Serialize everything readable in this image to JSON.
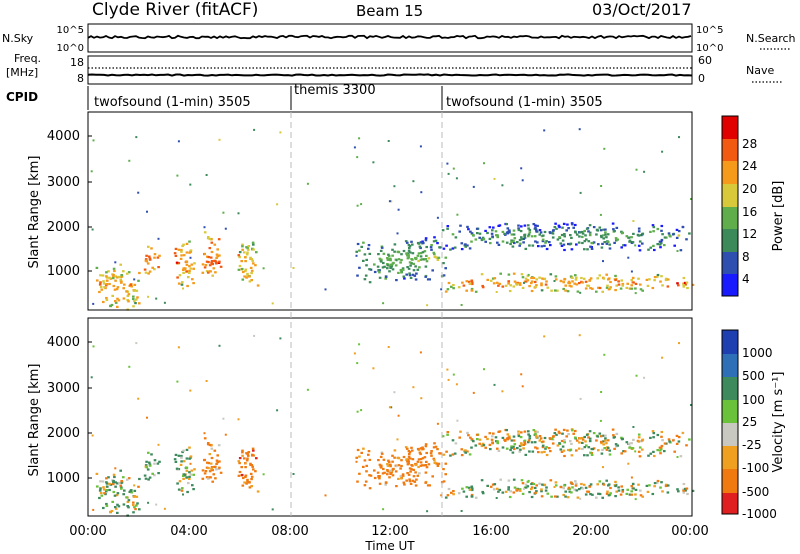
{
  "header": {
    "station": "Clyde River (fitACF)",
    "beam": "Beam 15",
    "date": "03/Oct/2017"
  },
  "top_panels": {
    "noise": {
      "label": "N.Sky",
      "left_top": "10^5",
      "left_bottom": "10^0",
      "right_top": "10^5",
      "right_bottom": "10^0",
      "right_label": "N.Search"
    },
    "freq": {
      "label": "Freq.",
      "unit": "[MHz]",
      "left_top": "18",
      "left_bottom": "8",
      "right_top": "60",
      "right_bottom": "0",
      "right_label": "Nave"
    },
    "cpid_label": "CPID",
    "modes": [
      {
        "start_hour": 0,
        "label": "twofsound (1-min) 3505"
      },
      {
        "start_hour": 8,
        "label": "themis 3300"
      },
      {
        "start_hour": 14,
        "label": "twofsound (1-min) 3505"
      }
    ]
  },
  "x_axis": {
    "label": "Time UT",
    "range_hours": [
      0,
      24
    ],
    "ticks": [
      "00:00",
      "04:00",
      "08:00",
      "12:00",
      "16:00",
      "20:00",
      "00:00"
    ]
  },
  "panels": {
    "power": {
      "y_label": "Slant Range [km]",
      "y_ticks": [
        "1000",
        "2000",
        "3000",
        "4000"
      ],
      "colorbar_label": "Power [dB]",
      "colorbar_ticks": [
        "4",
        "8",
        "12",
        "16",
        "20",
        "24",
        "28"
      ]
    },
    "velocity": {
      "y_label": "Slant Range [km]",
      "y_ticks": [
        "1000",
        "2000",
        "3000",
        "4000"
      ],
      "colorbar_label": "Velocity [m s⁻¹]",
      "colorbar_ticks": [
        "1000",
        "500",
        "100",
        "25",
        "-25",
        "-100",
        "-500",
        "-1000"
      ]
    }
  },
  "colors": {
    "power_scale": [
      "#1a1aff",
      "#2f4fb0",
      "#3c8a5a",
      "#5fae4b",
      "#d8c93a",
      "#f59a1a",
      "#f25a12",
      "#e00000"
    ],
    "velocity_scale": [
      "#1e3fb0",
      "#2f6fb8",
      "#3d8a5d",
      "#6ac23a",
      "#c8c8c0",
      "#f0a020",
      "#f07a10",
      "#e02020"
    ]
  },
  "chart_data": [
    {
      "type": "heatmap",
      "title": "Power",
      "x_unit": "hours UT",
      "y_unit": "slant range km",
      "xlim": [
        0,
        24
      ],
      "ylim": [
        180,
        4500
      ],
      "clim": [
        0,
        30
      ],
      "colorbar": "Power [dB]",
      "regions": [
        {
          "x": [
            0.3,
            2.0
          ],
          "y": [
            200,
            1200
          ],
          "value": 22
        },
        {
          "x": [
            2.2,
            2.8
          ],
          "y": [
            900,
            1700
          ],
          "value": 26
        },
        {
          "x": [
            3.4,
            4.2
          ],
          "y": [
            700,
            1800
          ],
          "value": 24
        },
        {
          "x": [
            4.5,
            5.3
          ],
          "y": [
            600,
            1900
          ],
          "value": 26
        },
        {
          "x": [
            5.9,
            6.8
          ],
          "y": [
            700,
            1700
          ],
          "value": 22
        },
        {
          "x": [
            10.6,
            14.2
          ],
          "y": [
            800,
            1800
          ],
          "value": 14
        },
        {
          "x": [
            14.0,
            24.0
          ],
          "y": [
            600,
            1000
          ],
          "value": 24
        },
        {
          "x": [
            14.0,
            24.0
          ],
          "y": [
            1500,
            2100
          ],
          "value": 12
        }
      ]
    },
    {
      "type": "heatmap",
      "title": "Velocity",
      "x_unit": "hours UT",
      "y_unit": "slant range km",
      "xlim": [
        0,
        24
      ],
      "ylim": [
        180,
        4500
      ],
      "clim": [
        -1000,
        1000
      ],
      "colorbar": "Velocity [m s-1]",
      "regions": [
        {
          "x": [
            0.3,
            2.0
          ],
          "y": [
            200,
            1200
          ],
          "value": 60
        },
        {
          "x": [
            2.2,
            2.8
          ],
          "y": [
            900,
            1700
          ],
          "value": 150
        },
        {
          "x": [
            3.4,
            4.2
          ],
          "y": [
            700,
            1800
          ],
          "value": 120
        },
        {
          "x": [
            4.5,
            5.3
          ],
          "y": [
            600,
            1900
          ],
          "value": -200
        },
        {
          "x": [
            5.9,
            6.8
          ],
          "y": [
            700,
            1700
          ],
          "value": -300
        },
        {
          "x": [
            10.6,
            14.2
          ],
          "y": [
            800,
            1800
          ],
          "value": -250
        },
        {
          "x": [
            14.0,
            24.0
          ],
          "y": [
            600,
            1000
          ],
          "value": 80
        },
        {
          "x": [
            14.0,
            24.0
          ],
          "y": [
            1500,
            2100
          ],
          "value": 0
        }
      ]
    }
  ]
}
